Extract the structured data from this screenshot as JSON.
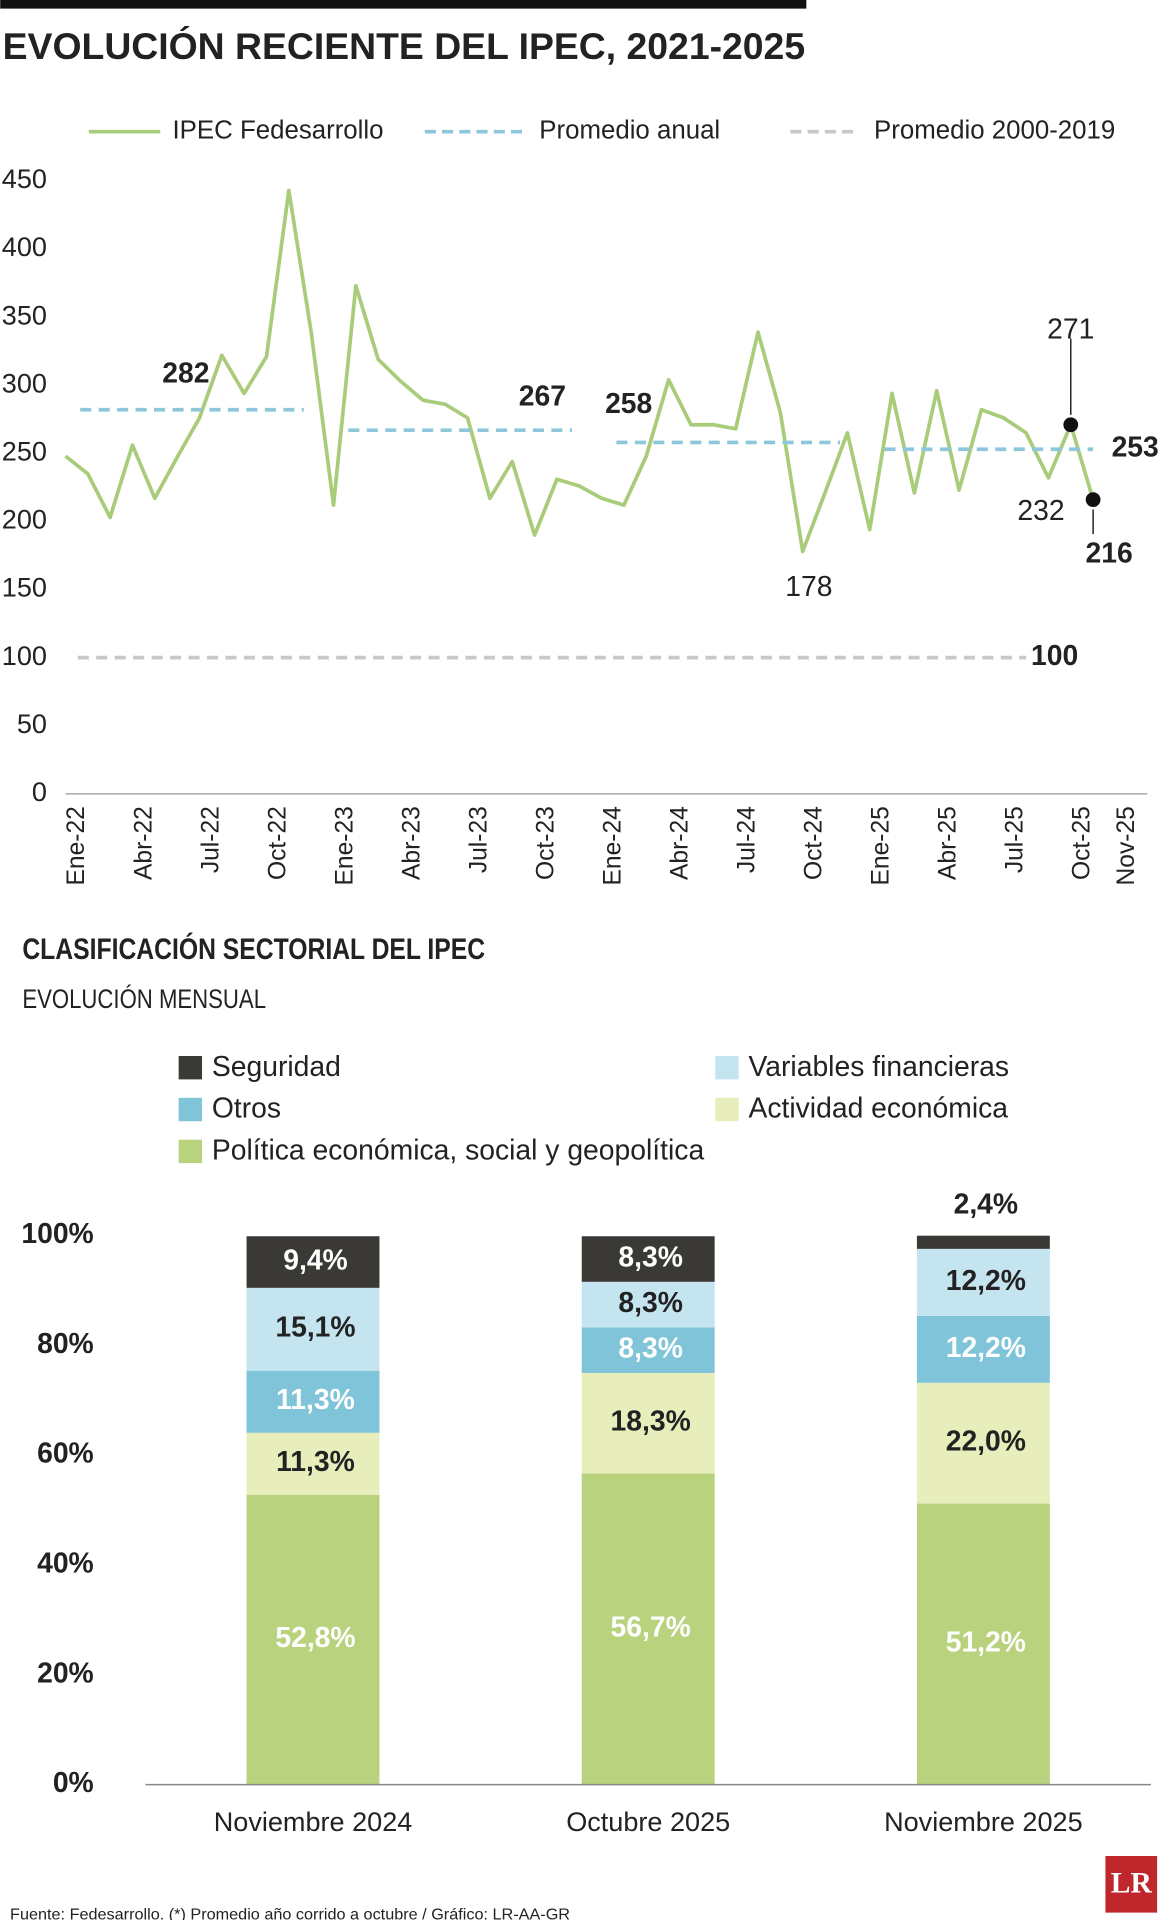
{
  "chart_data": [
    {
      "type": "line",
      "title": "EVOLUCIÓN RECIENTE DEL IPEC, 2021-2025",
      "categories": [
        "Ene-22",
        null,
        null,
        "Abr-22",
        null,
        null,
        "Jul-22",
        null,
        null,
        "Oct-22",
        null,
        null,
        "Ene-23",
        null,
        null,
        "Abr-23",
        null,
        null,
        "Jul-23",
        null,
        null,
        "Oct-23",
        null,
        null,
        "Ene-24",
        null,
        null,
        "Abr-24",
        null,
        null,
        "Jul-24",
        null,
        null,
        "Oct-24",
        null,
        null,
        "Ene-25",
        null,
        null,
        "Abr-25",
        null,
        null,
        "Jul-25",
        null,
        null,
        "Oct-25",
        "Nov-25"
      ],
      "series": [
        {
          "name": "IPEC Fedesarrollo",
          "color": "#a8cc7a",
          "style": "solid",
          "values": [
            248,
            235,
            203,
            256,
            217,
            247,
            276,
            322,
            294,
            321,
            443,
            339,
            212,
            373,
            319,
            303,
            289,
            286,
            276,
            217,
            244,
            190,
            231,
            226,
            217,
            212,
            248,
            304,
            271,
            271,
            268,
            339,
            280,
            178,
            221,
            265,
            194,
            294,
            221,
            296,
            223,
            282,
            276,
            265,
            232,
            271,
            216
          ]
        },
        {
          "name": "Promedio anual",
          "color": "#8ec6dc",
          "style": "dashed",
          "values": [
            282,
            282,
            282,
            282,
            282,
            282,
            282,
            282,
            282,
            282,
            282,
            282,
            267,
            267,
            267,
            267,
            267,
            267,
            267,
            267,
            267,
            267,
            267,
            267,
            258,
            258,
            258,
            258,
            258,
            258,
            258,
            258,
            258,
            258,
            258,
            258,
            253,
            253,
            253,
            253,
            253,
            253,
            253,
            253,
            253,
            253,
            253
          ]
        },
        {
          "name": "Promedio 2000-2019",
          "color": "#c8c8c8",
          "style": "dashed",
          "values": [
            100,
            100,
            100,
            100,
            100,
            100,
            100,
            100,
            100,
            100,
            100,
            100,
            100,
            100,
            100,
            100,
            100,
            100,
            100,
            100,
            100,
            100,
            100,
            100,
            100,
            100,
            100,
            100,
            100,
            100,
            100,
            100,
            100,
            100,
            100,
            100,
            100,
            100,
            100,
            100,
            100,
            100,
            100,
            100,
            null,
            null,
            null
          ]
        }
      ],
      "ylim": [
        0,
        450
      ],
      "yticks": [
        0,
        50,
        100,
        150,
        200,
        250,
        300,
        350,
        400,
        450
      ]
    },
    {
      "type": "stacked_bar",
      "title": "CLASIFICACIÓN SECTORIAL DEL IPEC",
      "subtitle": "EVOLUCIÓN MENSUAL",
      "categories": [
        "Noviembre 2024",
        "Octubre 2025",
        "Noviembre 2025"
      ],
      "series": [
        {
          "name": "Política económica, social y geopolítica",
          "color": "#b8d27e",
          "values": [
            52.8,
            56.7,
            51.2
          ],
          "value_labels": [
            "52,8%",
            "56,7%",
            "51,2%"
          ]
        },
        {
          "name": "Actividad económica",
          "color": "#e7edbb",
          "values": [
            11.3,
            18.3,
            22.0
          ],
          "value_labels": [
            "11,3%",
            "18,3%",
            "22,0%"
          ]
        },
        {
          "name": "Otros",
          "color": "#7fc4d9",
          "values": [
            11.3,
            8.3,
            12.2
          ],
          "value_labels": [
            "11,3%",
            "8,3%",
            "12,2%"
          ]
        },
        {
          "name": "Variables financieras",
          "color": "#c4e4f0",
          "values": [
            15.1,
            8.3,
            12.2
          ],
          "value_labels": [
            "15,1%",
            "8,3%",
            "12,2%"
          ]
        },
        {
          "name": "Seguridad",
          "color": "#3b3935",
          "values": [
            9.4,
            8.3,
            2.4
          ],
          "value_labels": [
            "9,4%",
            "8,3%",
            "2,4%"
          ]
        }
      ],
      "ylim": [
        0,
        100
      ],
      "yticks": [
        {
          "value": 0,
          "label": "0%"
        },
        {
          "value": 20,
          "label": "20%"
        },
        {
          "value": 40,
          "label": "40%"
        },
        {
          "value": 60,
          "label": "60%"
        },
        {
          "value": 80,
          "label": "80%"
        },
        {
          "value": 100,
          "label": "100%"
        }
      ]
    }
  ],
  "source": "Fuente: Fedesarrollo. (*) Promedio año corrido a octubre / Gráfico: LR-AA-GR",
  "logo": "LR"
}
